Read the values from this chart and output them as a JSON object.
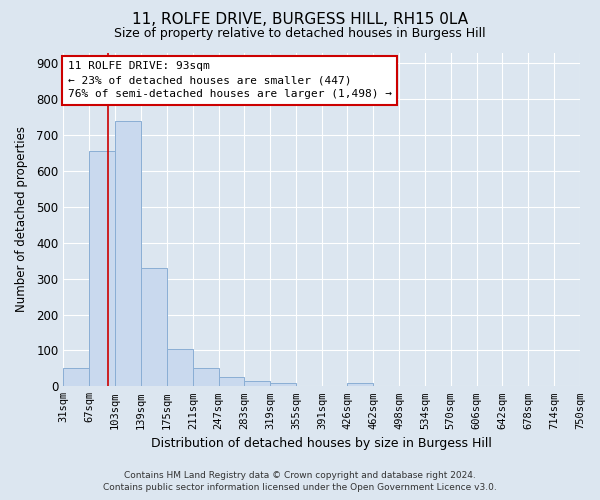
{
  "title": "11, ROLFE DRIVE, BURGESS HILL, RH15 0LA",
  "subtitle": "Size of property relative to detached houses in Burgess Hill",
  "xlabel": "Distribution of detached houses by size in Burgess Hill",
  "ylabel": "Number of detached properties",
  "footer_line1": "Contains HM Land Registry data © Crown copyright and database right 2024.",
  "footer_line2": "Contains public sector information licensed under the Open Government Licence v3.0.",
  "annotation_line1": "11 ROLFE DRIVE: 93sqm",
  "annotation_line2": "← 23% of detached houses are smaller (447)",
  "annotation_line3": "76% of semi-detached houses are larger (1,498) →",
  "bin_edges": [
    31,
    67,
    103,
    139,
    175,
    211,
    247,
    283,
    319,
    355,
    391,
    426,
    462,
    498,
    534,
    570,
    606,
    642,
    678,
    714,
    750
  ],
  "bar_heights": [
    50,
    655,
    740,
    330,
    105,
    50,
    25,
    15,
    10,
    0,
    0,
    10,
    0,
    0,
    0,
    0,
    0,
    0,
    0,
    0
  ],
  "bar_color": "#c9d9ee",
  "bar_edgecolor": "#8aaed4",
  "redline_x": 93,
  "annotation_box_facecolor": "#ffffff",
  "annotation_box_edgecolor": "#cc0000",
  "background_color": "#dce6f0",
  "plot_bg_color": "#dce6f0",
  "grid_color": "#ffffff",
  "ylim": [
    0,
    930
  ],
  "yticks": [
    0,
    100,
    200,
    300,
    400,
    500,
    600,
    700,
    800,
    900
  ]
}
